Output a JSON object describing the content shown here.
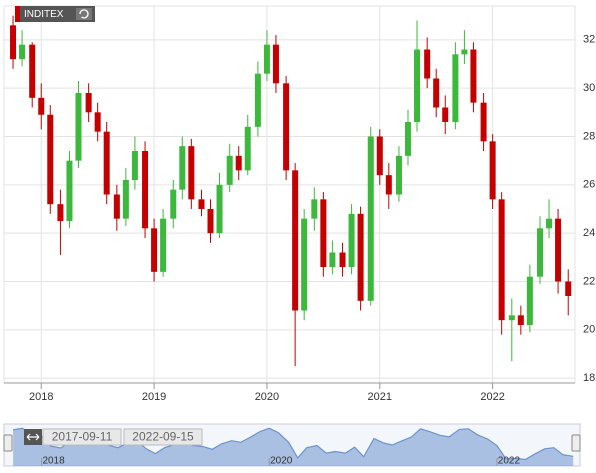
{
  "chart_data": {
    "type": "candlestick",
    "title": "INDITEX",
    "x": [
      2017.75,
      2017.83,
      2017.92,
      2018.0,
      2018.08,
      2018.17,
      2018.25,
      2018.33,
      2018.42,
      2018.5,
      2018.58,
      2018.67,
      2018.75,
      2018.83,
      2018.92,
      2019.0,
      2019.08,
      2019.17,
      2019.25,
      2019.33,
      2019.42,
      2019.5,
      2019.58,
      2019.67,
      2019.75,
      2019.83,
      2019.92,
      2020.0,
      2020.08,
      2020.17,
      2020.25,
      2020.33,
      2020.42,
      2020.5,
      2020.58,
      2020.67,
      2020.75,
      2020.83,
      2020.92,
      2021.0,
      2021.08,
      2021.17,
      2021.25,
      2021.33,
      2021.42,
      2021.5,
      2021.58,
      2021.67,
      2021.75,
      2021.83,
      2021.92,
      2022.0,
      2022.08,
      2022.17,
      2022.25,
      2022.33,
      2022.42,
      2022.5,
      2022.58,
      2022.67
    ],
    "open": [
      32.6,
      31.2,
      31.8,
      29.6,
      28.9,
      25.2,
      24.5,
      27.0,
      29.8,
      29.0,
      28.2,
      25.6,
      24.6,
      26.2,
      27.4,
      24.2,
      22.4,
      24.6,
      25.8,
      27.6,
      25.4,
      25.0,
      24.0,
      26.0,
      27.2,
      26.6,
      28.4,
      30.6,
      31.8,
      30.2,
      26.6,
      20.8,
      24.6,
      25.4,
      22.6,
      23.2,
      22.6,
      24.8,
      21.2,
      28.0,
      26.4,
      25.6,
      27.2,
      28.6,
      31.6,
      30.4,
      29.2,
      28.6,
      31.4,
      31.6,
      29.4,
      27.8,
      25.4,
      20.4,
      20.6,
      20.2,
      22.2,
      24.2,
      24.6,
      22.0
    ],
    "high": [
      33.0,
      32.4,
      31.9,
      30.2,
      29.3,
      25.8,
      27.4,
      30.3,
      30.2,
      29.4,
      28.6,
      26.0,
      26.7,
      28.0,
      27.8,
      24.6,
      25.0,
      26.2,
      28.0,
      27.9,
      25.8,
      25.4,
      26.5,
      27.7,
      27.6,
      28.9,
      31.1,
      32.4,
      32.2,
      30.5,
      26.9,
      25.0,
      25.9,
      25.7,
      23.7,
      23.6,
      25.2,
      25.1,
      28.4,
      28.3,
      26.9,
      27.6,
      29.1,
      32.8,
      32.1,
      30.8,
      29.7,
      31.9,
      32.4,
      31.9,
      29.8,
      28.1,
      25.7,
      21.3,
      21.0,
      22.7,
      24.7,
      25.4,
      25.0,
      22.5
    ],
    "low": [
      30.8,
      30.9,
      29.2,
      28.3,
      24.8,
      23.1,
      24.2,
      26.7,
      28.6,
      27.8,
      25.2,
      24.1,
      24.3,
      25.8,
      23.8,
      22.0,
      22.2,
      24.2,
      25.4,
      25.0,
      24.7,
      23.6,
      23.8,
      25.7,
      26.2,
      26.4,
      28.0,
      30.3,
      29.8,
      26.2,
      18.5,
      20.4,
      24.1,
      22.2,
      22.3,
      22.2,
      22.3,
      20.8,
      21.0,
      26.0,
      25.0,
      25.3,
      26.8,
      28.2,
      30.0,
      28.8,
      28.1,
      28.3,
      31.0,
      29.0,
      27.4,
      25.0,
      19.8,
      18.7,
      19.8,
      19.9,
      21.9,
      23.8,
      21.5,
      20.6
    ],
    "close": [
      31.2,
      31.8,
      29.6,
      28.9,
      25.2,
      24.5,
      27.0,
      29.8,
      29.0,
      28.2,
      25.6,
      24.6,
      26.2,
      27.4,
      24.2,
      22.4,
      24.6,
      25.8,
      27.6,
      25.4,
      25.0,
      24.0,
      26.0,
      27.2,
      26.6,
      28.4,
      30.6,
      31.8,
      30.2,
      26.6,
      20.8,
      24.6,
      25.4,
      22.6,
      23.2,
      22.6,
      24.8,
      21.2,
      28.0,
      26.4,
      25.6,
      27.2,
      28.6,
      31.6,
      30.4,
      29.2,
      28.6,
      31.4,
      31.6,
      29.4,
      27.8,
      25.4,
      20.4,
      20.6,
      20.2,
      22.2,
      24.2,
      24.6,
      22.0,
      21.4
    ],
    "up_color": "#3cb93c",
    "down_color": "#c40000",
    "xlim": [
      2017.67,
      2022.73
    ],
    "xticks": [
      2018,
      2019,
      2020,
      2021,
      2022
    ],
    "ylim": [
      17.8,
      33.4
    ],
    "yticks": [
      18,
      20,
      22,
      24,
      26,
      28,
      30,
      32
    ],
    "grid": true,
    "navigator": {
      "xticks": [
        2018,
        2020,
        2022
      ],
      "range_start": "2017-09-11",
      "range_end": "2022-09-15",
      "color": "#6b93cf"
    }
  }
}
